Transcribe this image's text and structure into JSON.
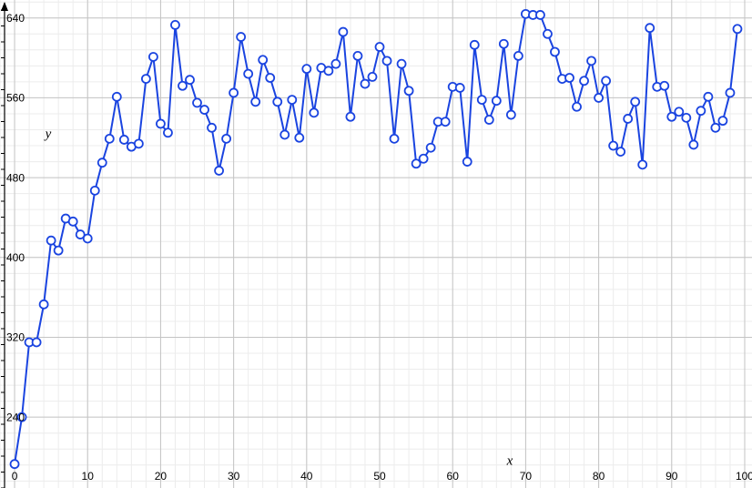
{
  "chart_data": {
    "type": "line",
    "x_label": "x",
    "y_label": "y",
    "x": [
      0,
      1,
      2,
      3,
      4,
      5,
      6,
      7,
      8,
      9,
      10,
      11,
      12,
      13,
      14,
      15,
      16,
      17,
      18,
      19,
      20,
      21,
      22,
      23,
      24,
      25,
      26,
      27,
      28,
      29,
      30,
      31,
      32,
      33,
      34,
      35,
      36,
      37,
      38,
      39,
      40,
      41,
      42,
      43,
      44,
      45,
      46,
      47,
      48,
      49,
      50,
      51,
      52,
      53,
      54,
      55,
      56,
      57,
      58,
      59,
      60,
      61,
      62,
      63,
      64,
      65,
      66,
      67,
      68,
      69,
      70,
      71,
      72,
      73,
      74,
      75,
      76,
      77,
      78,
      79,
      80,
      81,
      82,
      83,
      84,
      85,
      86,
      87,
      88,
      89,
      90,
      91,
      92,
      93,
      94,
      95,
      96,
      97,
      98,
      99
    ],
    "series": [
      {
        "color": "#1a44e0",
        "values": [
          193,
          240,
          315,
          315,
          353,
          417,
          407,
          439,
          436,
          423,
          419,
          467,
          495,
          519,
          561,
          518,
          511,
          514,
          579,
          601,
          534,
          525,
          633,
          572,
          578,
          555,
          548,
          530,
          487,
          519,
          565,
          621,
          584,
          556,
          598,
          580,
          556,
          523,
          558,
          520,
          589,
          545,
          590,
          587,
          594,
          626,
          541,
          602,
          574,
          581,
          611,
          597,
          519,
          594,
          567,
          494,
          499,
          510,
          536,
          536,
          571,
          570,
          496,
          613,
          558,
          538,
          557,
          614,
          543,
          602,
          644,
          643,
          643,
          624,
          606,
          579,
          580,
          551,
          577,
          597,
          560,
          577,
          512,
          506,
          539,
          556,
          493,
          630,
          571,
          572,
          541,
          546,
          540,
          513,
          547,
          561,
          530,
          537,
          565,
          629
        ]
      }
    ],
    "xlim": [
      -2,
      101
    ],
    "ylim": [
      169,
      658
    ],
    "xticks": [
      0,
      10,
      20,
      30,
      40,
      50,
      60,
      70,
      80,
      90,
      100
    ],
    "yticks": [
      240,
      320,
      400,
      480,
      560,
      640
    ],
    "grid": true
  }
}
